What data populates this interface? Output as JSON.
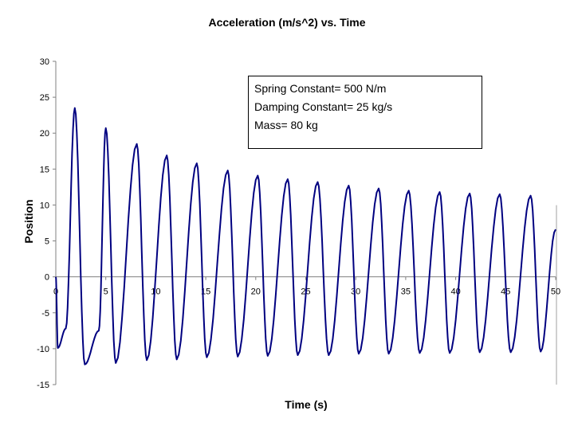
{
  "chart_data": {
    "type": "line",
    "title": "Acceleration (m/s^2) vs. Time",
    "xlabel": "Time (s)",
    "ylabel": "Position",
    "xlim": [
      0,
      50
    ],
    "ylim": [
      -15,
      30
    ],
    "x_ticks": [
      0,
      5,
      10,
      15,
      20,
      25,
      30,
      35,
      40,
      45,
      50
    ],
    "y_ticks": [
      30,
      25,
      20,
      15,
      10,
      5,
      0,
      -5,
      -10,
      -15
    ],
    "grid": false,
    "legend": null,
    "line_color": "#000080",
    "series": [
      {
        "name": "Acceleration",
        "extrema": [
          {
            "x": 0.0,
            "y": 0.0
          },
          {
            "x": 0.2,
            "y": -9.9
          },
          {
            "x": 1.0,
            "y": -7.2
          },
          {
            "x": 1.9,
            "y": 23.5
          },
          {
            "x": 2.9,
            "y": -12.2
          },
          {
            "x": 4.3,
            "y": -7.5
          },
          {
            "x": 5.0,
            "y": 20.7
          },
          {
            "x": 6.0,
            "y": -12.0
          },
          {
            "x": 8.1,
            "y": 18.5
          },
          {
            "x": 9.1,
            "y": -11.6
          },
          {
            "x": 11.1,
            "y": 16.9
          },
          {
            "x": 12.1,
            "y": -11.5
          },
          {
            "x": 14.1,
            "y": 15.8
          },
          {
            "x": 15.1,
            "y": -11.2
          },
          {
            "x": 17.2,
            "y": 14.8
          },
          {
            "x": 18.2,
            "y": -11.1
          },
          {
            "x": 20.2,
            "y": 14.1
          },
          {
            "x": 21.2,
            "y": -11.0
          },
          {
            "x": 23.2,
            "y": 13.6
          },
          {
            "x": 24.2,
            "y": -10.9
          },
          {
            "x": 26.2,
            "y": 13.2
          },
          {
            "x": 27.3,
            "y": -10.9
          },
          {
            "x": 29.3,
            "y": 12.7
          },
          {
            "x": 30.3,
            "y": -10.7
          },
          {
            "x": 32.3,
            "y": 12.3
          },
          {
            "x": 33.3,
            "y": -10.7
          },
          {
            "x": 35.3,
            "y": 12.0
          },
          {
            "x": 36.4,
            "y": -10.6
          },
          {
            "x": 38.4,
            "y": 11.8
          },
          {
            "x": 39.4,
            "y": -10.6
          },
          {
            "x": 41.4,
            "y": 11.6
          },
          {
            "x": 42.4,
            "y": -10.5
          },
          {
            "x": 44.4,
            "y": 11.5
          },
          {
            "x": 45.5,
            "y": -10.5
          },
          {
            "x": 47.5,
            "y": 11.3
          },
          {
            "x": 48.5,
            "y": -10.4
          },
          {
            "x": 50.0,
            "y": 6.6
          }
        ]
      }
    ]
  },
  "info_box": {
    "line1": "Spring Constant= 500 N/m",
    "line2": "Damping Constant= 25 kg/s",
    "line3": "Mass= 80 kg"
  }
}
